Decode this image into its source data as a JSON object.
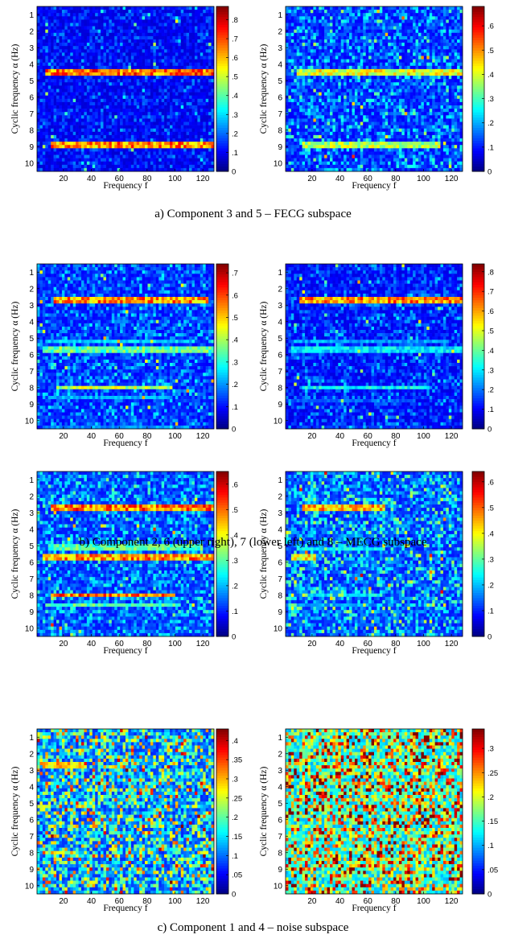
{
  "figure": {
    "captions": [
      "a) Component 3 and 5 – FECG subspace",
      "b) Component 2, 6 (upper right), 7 (lower left) and 8 – MECG subspace",
      "c) Component 1 and 4 – noise subspace"
    ]
  },
  "chart_data": [
    {
      "type": "heatmap",
      "xlabel": "Frequency f",
      "ylabel": "Cyclic frequency α (Hz)",
      "xticks": [
        20,
        40,
        60,
        80,
        100,
        120
      ],
      "yticks": [
        1,
        2,
        3,
        4,
        5,
        6,
        7,
        8,
        9,
        10
      ],
      "xlim": [
        1,
        128
      ],
      "ylim": [
        0.5,
        10.5
      ],
      "colormap": "jet",
      "clim": [
        0,
        0.87
      ],
      "colorbar_ticks": [
        0,
        0.1,
        0.2,
        0.3,
        0.4,
        0.5,
        0.6,
        0.7,
        0.8
      ],
      "background": 0.07,
      "noise": 0.09,
      "bands": [
        {
          "alpha": 4.5,
          "x_range": [
            6,
            128
          ],
          "value": 0.68
        },
        {
          "alpha": 8.9,
          "x_range": [
            10,
            128
          ],
          "value": 0.65
        }
      ]
    },
    {
      "type": "heatmap",
      "xlabel": "Frequency f",
      "ylabel": "Cyclic frequency α (Hz)",
      "xticks": [
        20,
        40,
        60,
        80,
        100,
        120
      ],
      "yticks": [
        1,
        2,
        3,
        4,
        5,
        6,
        7,
        8,
        9,
        10
      ],
      "xlim": [
        1,
        128
      ],
      "ylim": [
        0.5,
        10.5
      ],
      "colormap": "jet",
      "clim": [
        0,
        0.68
      ],
      "colorbar_ticks": [
        0,
        0.1,
        0.2,
        0.3,
        0.4,
        0.5,
        0.6
      ],
      "background": 0.08,
      "noise": 0.12,
      "bands": [
        {
          "alpha": 4.5,
          "x_range": [
            8,
            128
          ],
          "value": 0.42
        },
        {
          "alpha": 8.9,
          "x_range": [
            12,
            112
          ],
          "value": 0.38
        }
      ]
    },
    {
      "type": "heatmap",
      "xlabel": "Frequency f",
      "ylabel": "Cyclic frequency α (Hz)",
      "xticks": [
        20,
        40,
        60,
        80,
        100,
        120
      ],
      "yticks": [
        1,
        2,
        3,
        4,
        5,
        6,
        7,
        8,
        9,
        10
      ],
      "xlim": [
        1,
        128
      ],
      "ylim": [
        0.5,
        10.5
      ],
      "colormap": "jet",
      "clim": [
        0,
        0.74
      ],
      "colorbar_ticks": [
        0,
        0.1,
        0.2,
        0.3,
        0.4,
        0.5,
        0.6,
        0.7
      ],
      "background": 0.09,
      "noise": 0.1,
      "bands": [
        {
          "alpha": 2.7,
          "x_range": [
            12,
            125
          ],
          "value": 0.55
        },
        {
          "alpha": 5.2,
          "x_range": [
            8,
            115
          ],
          "value": 0.25
        },
        {
          "alpha": 5.7,
          "x_range": [
            5,
            128
          ],
          "value": 0.35
        },
        {
          "alpha": 8.0,
          "x_range": [
            14,
            98
          ],
          "value": 0.42
        },
        {
          "alpha": 8.6,
          "x_range": [
            8,
            98
          ],
          "value": 0.22
        },
        {
          "alpha": 10.4,
          "x_range": [
            8,
            110
          ],
          "value": 0.2
        }
      ]
    },
    {
      "type": "heatmap",
      "xlabel": "Frequency f",
      "ylabel": "Cyclic frequency α (Hz)",
      "xticks": [
        20,
        40,
        60,
        80,
        100,
        120
      ],
      "yticks": [
        1,
        2,
        3,
        4,
        5,
        6,
        7,
        8,
        9,
        10
      ],
      "xlim": [
        1,
        128
      ],
      "ylim": [
        0.5,
        10.5
      ],
      "colormap": "jet",
      "clim": [
        0,
        0.84
      ],
      "colorbar_ticks": [
        0,
        0.1,
        0.2,
        0.3,
        0.4,
        0.5,
        0.6,
        0.7,
        0.8
      ],
      "background": 0.08,
      "noise": 0.1,
      "bands": [
        {
          "alpha": 2.7,
          "x_range": [
            10,
            128
          ],
          "value": 0.62
        },
        {
          "alpha": 5.2,
          "x_range": [
            6,
            118
          ],
          "value": 0.24
        },
        {
          "alpha": 5.7,
          "x_range": [
            4,
            128
          ],
          "value": 0.3
        },
        {
          "alpha": 8.0,
          "x_range": [
            12,
            105
          ],
          "value": 0.32
        },
        {
          "alpha": 8.8,
          "x_range": [
            6,
            95
          ],
          "value": 0.18
        },
        {
          "alpha": 10.4,
          "x_range": [
            8,
            100
          ],
          "value": 0.14
        }
      ]
    },
    {
      "type": "heatmap",
      "xlabel": "Frequency f",
      "ylabel": "Cyclic frequency α (Hz)",
      "xticks": [
        20,
        40,
        60,
        80,
        100,
        120
      ],
      "yticks": [
        1,
        2,
        3,
        4,
        5,
        6,
        7,
        8,
        9,
        10
      ],
      "xlim": [
        1,
        128
      ],
      "ylim": [
        0.5,
        10.5
      ],
      "colormap": "jet",
      "clim": [
        0,
        0.65
      ],
      "colorbar_ticks": [
        0,
        0.1,
        0.2,
        0.3,
        0.4,
        0.5,
        0.6
      ],
      "background": 0.09,
      "noise": 0.11,
      "bands": [
        {
          "alpha": 2.7,
          "x_range": [
            10,
            128
          ],
          "value": 0.5
        },
        {
          "alpha": 5.1,
          "x_range": [
            8,
            120
          ],
          "value": 0.3
        },
        {
          "alpha": 5.7,
          "x_range": [
            4,
            128
          ],
          "value": 0.48
        },
        {
          "alpha": 8.0,
          "x_range": [
            10,
            100
          ],
          "value": 0.5
        },
        {
          "alpha": 8.6,
          "x_range": [
            6,
            100
          ],
          "value": 0.3
        }
      ]
    },
    {
      "type": "heatmap",
      "xlabel": "Frequency f",
      "ylabel": "Cyclic frequency α (Hz)",
      "xticks": [
        20,
        40,
        60,
        80,
        100,
        120
      ],
      "yticks": [
        1,
        2,
        3,
        4,
        5,
        6,
        7,
        8,
        9,
        10
      ],
      "xlim": [
        1,
        128
      ],
      "ylim": [
        0.5,
        10.5
      ],
      "colormap": "jet",
      "clim": [
        0,
        0.64
      ],
      "colorbar_ticks": [
        0,
        0.1,
        0.2,
        0.3,
        0.4,
        0.5,
        0.6
      ],
      "background": 0.09,
      "noise": 0.14,
      "bands": [
        {
          "alpha": 2.7,
          "x_range": [
            12,
            72
          ],
          "value": 0.45
        },
        {
          "alpha": 5.2,
          "x_range": [
            8,
            72
          ],
          "value": 0.25
        },
        {
          "alpha": 5.7,
          "x_range": [
            4,
            22
          ],
          "value": 0.42
        },
        {
          "alpha": 8.0,
          "x_range": [
            12,
            70
          ],
          "value": 0.22
        },
        {
          "alpha": 8.6,
          "x_range": [
            8,
            60
          ],
          "value": 0.18
        }
      ]
    },
    {
      "type": "heatmap",
      "xlabel": "Frequency f",
      "ylabel": "Cyclic frequency α (Hz)",
      "xticks": [
        20,
        40,
        60,
        80,
        100,
        120
      ],
      "yticks": [
        1,
        2,
        3,
        4,
        5,
        6,
        7,
        8,
        9,
        10
      ],
      "xlim": [
        1,
        128
      ],
      "ylim": [
        0.5,
        10.5
      ],
      "colormap": "jet",
      "clim": [
        0,
        0.43
      ],
      "colorbar_ticks": [
        0,
        0.05,
        0.1,
        0.15,
        0.2,
        0.25,
        0.3,
        0.35,
        0.4
      ],
      "background": 0.07,
      "noise": 0.16,
      "bands": [
        {
          "alpha": 2.7,
          "x_range": [
            4,
            36
          ],
          "value": 0.3
        },
        {
          "alpha": 5.2,
          "x_range": [
            1,
            10
          ],
          "value": 0.26
        },
        {
          "alpha": 8.0,
          "x_range": [
            6,
            28
          ],
          "value": 0.24
        }
      ]
    },
    {
      "type": "heatmap",
      "xlabel": "Frequency f",
      "ylabel": "Cyclic frequency α (Hz)",
      "xticks": [
        20,
        40,
        60,
        80,
        100,
        120
      ],
      "yticks": [
        1,
        2,
        3,
        4,
        5,
        6,
        7,
        8,
        9,
        10
      ],
      "xlim": [
        1,
        128
      ],
      "ylim": [
        0.5,
        10.5
      ],
      "colormap": "jet",
      "clim": [
        0,
        0.34
      ],
      "colorbar_ticks": [
        0,
        0.05,
        0.1,
        0.15,
        0.2,
        0.25,
        0.3
      ],
      "background": 0.1,
      "noise": 0.17,
      "bands": []
    }
  ]
}
